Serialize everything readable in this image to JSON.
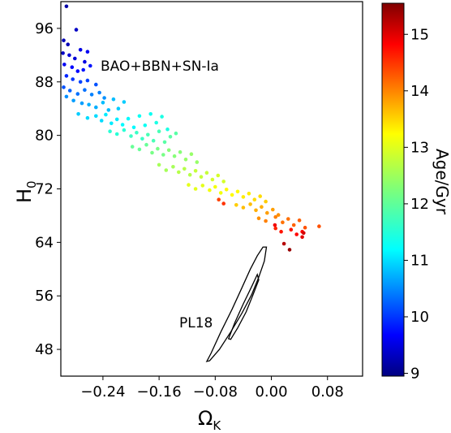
{
  "chart_data": {
    "type": "scatter",
    "xlabel": "Ω",
    "xlabel_sub": "K",
    "ylabel": "H",
    "ylabel_sub": "0",
    "xlim": [
      -0.3,
      0.13
    ],
    "ylim": [
      44,
      100
    ],
    "x_ticks": [
      -0.24,
      -0.16,
      -0.08,
      0.0,
      0.08
    ],
    "x_tick_labels": [
      "−0.24",
      "−0.16",
      "−0.08",
      "0.00",
      "0.08"
    ],
    "y_ticks": [
      48,
      56,
      64,
      72,
      80,
      88,
      96
    ],
    "y_tick_labels": [
      "48",
      "56",
      "64",
      "72",
      "80",
      "88",
      "96"
    ],
    "grid": false,
    "annotations": [
      {
        "text": "BAO+BBN+SN-Ia",
        "x": -0.24,
        "y": 89.5
      },
      {
        "text": "PL18",
        "x": -0.115,
        "y": 52.5
      }
    ],
    "colorbar": {
      "label": "Age/Gyr",
      "range": [
        8.95,
        15.55
      ],
      "ticks": [
        9,
        10,
        11,
        12,
        13,
        14,
        15
      ],
      "tick_labels": [
        "9",
        "10",
        "11",
        "12",
        "13",
        "14",
        "15"
      ],
      "colormap": "jet"
    },
    "scatter_points": [
      [
        -0.292,
        99.3,
        9.2
      ],
      [
        -0.296,
        94.2,
        9.3
      ],
      [
        -0.29,
        93.6,
        9.3
      ],
      [
        -0.278,
        95.8,
        9.4
      ],
      [
        -0.297,
        92.3,
        9.4
      ],
      [
        -0.288,
        92.0,
        9.5
      ],
      [
        -0.28,
        91.5,
        9.5
      ],
      [
        -0.272,
        92.8,
        9.6
      ],
      [
        -0.266,
        91.0,
        9.6
      ],
      [
        -0.262,
        92.5,
        9.7
      ],
      [
        -0.295,
        90.6,
        9.7
      ],
      [
        -0.284,
        90.2,
        9.8
      ],
      [
        -0.276,
        89.6,
        9.8
      ],
      [
        -0.268,
        89.8,
        9.9
      ],
      [
        -0.258,
        90.4,
        9.9
      ],
      [
        -0.292,
        88.9,
        10.0
      ],
      [
        -0.283,
        88.4,
        10.1
      ],
      [
        -0.272,
        88.0,
        10.2
      ],
      [
        -0.262,
        88.2,
        10.2
      ],
      [
        -0.25,
        87.6,
        10.3
      ],
      [
        -0.296,
        87.2,
        10.3
      ],
      [
        -0.287,
        86.7,
        10.4
      ],
      [
        -0.276,
        86.2,
        10.5
      ],
      [
        -0.266,
        86.8,
        10.5
      ],
      [
        -0.256,
        86.1,
        10.6
      ],
      [
        -0.245,
        86.4,
        10.6
      ],
      [
        -0.238,
        85.6,
        10.7
      ],
      [
        -0.292,
        85.8,
        10.7
      ],
      [
        -0.282,
        85.2,
        10.8
      ],
      [
        -0.27,
        84.8,
        10.8
      ],
      [
        -0.26,
        84.6,
        10.9
      ],
      [
        -0.25,
        84.2,
        10.9
      ],
      [
        -0.24,
        84.9,
        11.0
      ],
      [
        -0.232,
        83.8,
        11.0
      ],
      [
        -0.225,
        85.4,
        11.0
      ],
      [
        -0.218,
        84.0,
        11.1
      ],
      [
        -0.21,
        85.0,
        11.1
      ],
      [
        -0.275,
        83.2,
        11.1
      ],
      [
        -0.262,
        82.6,
        11.2
      ],
      [
        -0.25,
        82.9,
        11.2
      ],
      [
        -0.242,
        82.2,
        11.2
      ],
      [
        -0.236,
        83.1,
        11.3
      ],
      [
        -0.228,
        81.8,
        11.3
      ],
      [
        -0.22,
        82.4,
        11.3
      ],
      [
        -0.212,
        81.6,
        11.4
      ],
      [
        -0.204,
        82.5,
        11.4
      ],
      [
        -0.196,
        81.2,
        11.4
      ],
      [
        -0.188,
        82.9,
        11.5
      ],
      [
        -0.18,
        81.5,
        11.5
      ],
      [
        -0.172,
        83.2,
        11.5
      ],
      [
        -0.164,
        81.9,
        11.6
      ],
      [
        -0.156,
        82.8,
        11.6
      ],
      [
        -0.148,
        80.9,
        11.6
      ],
      [
        -0.23,
        80.6,
        11.7
      ],
      [
        -0.22,
        80.2,
        11.7
      ],
      [
        -0.21,
        80.8,
        11.7
      ],
      [
        -0.2,
        79.9,
        11.8
      ],
      [
        -0.192,
        80.4,
        11.8
      ],
      [
        -0.184,
        79.5,
        11.8
      ],
      [
        -0.176,
        80.1,
        11.9
      ],
      [
        -0.168,
        79.2,
        11.9
      ],
      [
        -0.16,
        80.6,
        11.9
      ],
      [
        -0.152,
        79.0,
        12.0
      ],
      [
        -0.144,
        79.8,
        12.0
      ],
      [
        -0.136,
        80.3,
        12.0
      ],
      [
        -0.198,
        78.3,
        12.1
      ],
      [
        -0.188,
        77.9,
        12.1
      ],
      [
        -0.178,
        78.6,
        12.1
      ],
      [
        -0.17,
        77.4,
        12.2
      ],
      [
        -0.162,
        78.0,
        12.2
      ],
      [
        -0.154,
        77.1,
        12.2
      ],
      [
        -0.146,
        77.8,
        12.3
      ],
      [
        -0.138,
        76.9,
        12.3
      ],
      [
        -0.13,
        77.5,
        12.3
      ],
      [
        -0.122,
        76.4,
        12.4
      ],
      [
        -0.114,
        77.2,
        12.4
      ],
      [
        -0.106,
        76.0,
        12.4
      ],
      [
        -0.16,
        75.6,
        12.5
      ],
      [
        -0.15,
        74.8,
        12.5
      ],
      [
        -0.14,
        75.3,
        12.5
      ],
      [
        -0.132,
        74.5,
        12.6
      ],
      [
        -0.124,
        75.0,
        12.6
      ],
      [
        -0.116,
        74.1,
        12.6
      ],
      [
        -0.108,
        74.7,
        12.7
      ],
      [
        -0.1,
        73.8,
        12.7
      ],
      [
        -0.092,
        74.4,
        12.7
      ],
      [
        -0.084,
        73.4,
        12.8
      ],
      [
        -0.076,
        74.0,
        12.8
      ],
      [
        -0.068,
        73.1,
        12.8
      ],
      [
        -0.118,
        72.6,
        12.9
      ],
      [
        -0.108,
        72.0,
        12.9
      ],
      [
        -0.098,
        72.5,
        12.9
      ],
      [
        -0.088,
        71.8,
        13.0
      ],
      [
        -0.08,
        72.3,
        13.0
      ],
      [
        -0.072,
        71.4,
        13.0
      ],
      [
        -0.064,
        71.9,
        13.1
      ],
      [
        -0.056,
        71.1,
        13.1
      ],
      [
        -0.048,
        71.6,
        13.1
      ],
      [
        -0.04,
        70.8,
        13.2
      ],
      [
        -0.032,
        71.3,
        13.2
      ],
      [
        -0.024,
        70.4,
        13.3
      ],
      [
        -0.016,
        70.9,
        13.3
      ],
      [
        -0.008,
        70.1,
        13.4
      ],
      [
        -0.05,
        69.6,
        13.4
      ],
      [
        -0.04,
        69.2,
        13.5
      ],
      [
        -0.03,
        69.7,
        13.5
      ],
      [
        -0.022,
        68.8,
        13.6
      ],
      [
        -0.014,
        69.3,
        13.6
      ],
      [
        -0.006,
        68.4,
        13.7
      ],
      [
        0.002,
        68.9,
        13.7
      ],
      [
        0.01,
        68.1,
        13.8
      ],
      [
        -0.018,
        67.6,
        13.8
      ],
      [
        -0.008,
        67.2,
        13.9
      ],
      [
        0.006,
        67.8,
        13.9
      ],
      [
        0.016,
        67.0,
        14.0
      ],
      [
        0.024,
        67.5,
        14.0
      ],
      [
        0.032,
        66.6,
        14.1
      ],
      [
        0.04,
        67.3,
        14.1
      ],
      [
        0.048,
        66.2,
        14.2
      ],
      [
        0.068,
        66.4,
        14.2
      ],
      [
        -0.075,
        70.4,
        14.3
      ],
      [
        -0.068,
        69.8,
        14.4
      ],
      [
        0.006,
        66.1,
        14.5
      ],
      [
        0.014,
        65.6,
        14.6
      ],
      [
        0.028,
        65.9,
        14.6
      ],
      [
        0.036,
        65.2,
        14.7
      ],
      [
        0.044,
        65.6,
        14.7
      ],
      [
        0.005,
        66.6,
        14.8
      ],
      [
        0.044,
        64.8,
        14.9
      ],
      [
        0.046,
        65.4,
        15.0
      ],
      [
        0.018,
        63.8,
        15.2
      ],
      [
        0.026,
        62.9,
        15.4
      ]
    ],
    "contours": [
      {
        "name": "PL18",
        "points": [
          [
            -0.092,
            46.2
          ],
          [
            -0.086,
            47.4
          ],
          [
            -0.072,
            50.6
          ],
          [
            -0.056,
            54.0
          ],
          [
            -0.042,
            57.2
          ],
          [
            -0.03,
            60.0
          ],
          [
            -0.02,
            62.0
          ],
          [
            -0.012,
            63.3
          ],
          [
            -0.007,
            63.3
          ],
          [
            -0.01,
            61.2
          ],
          [
            -0.018,
            58.8
          ],
          [
            -0.028,
            56.2
          ],
          [
            -0.042,
            53.4
          ],
          [
            -0.058,
            50.6
          ],
          [
            -0.074,
            48.0
          ],
          [
            -0.088,
            46.3
          ]
        ]
      },
      {
        "name": "PL18-inner",
        "points": [
          [
            -0.061,
            49.6
          ],
          [
            -0.052,
            52.0
          ],
          [
            -0.04,
            54.8
          ],
          [
            -0.028,
            57.4
          ],
          [
            -0.02,
            59.2
          ],
          [
            -0.018,
            58.4
          ],
          [
            -0.026,
            56.2
          ],
          [
            -0.036,
            53.6
          ],
          [
            -0.048,
            51.2
          ],
          [
            -0.058,
            49.5
          ]
        ]
      }
    ]
  }
}
